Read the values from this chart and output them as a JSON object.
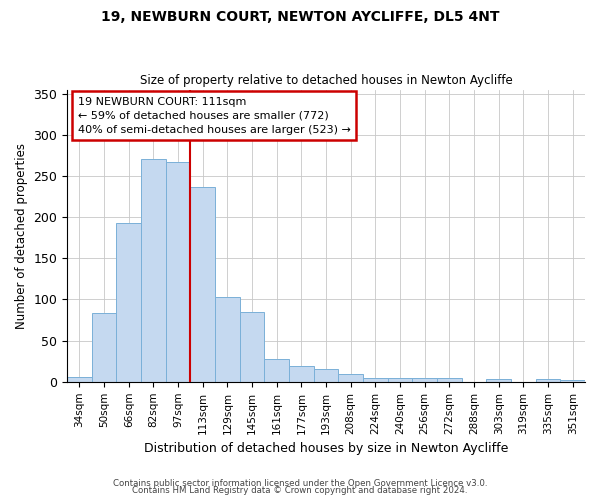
{
  "title": "19, NEWBURN COURT, NEWTON AYCLIFFE, DL5 4NT",
  "subtitle": "Size of property relative to detached houses in Newton Aycliffe",
  "xlabel": "Distribution of detached houses by size in Newton Aycliffe",
  "ylabel": "Number of detached properties",
  "bar_labels": [
    "34sqm",
    "50sqm",
    "66sqm",
    "82sqm",
    "97sqm",
    "113sqm",
    "129sqm",
    "145sqm",
    "161sqm",
    "177sqm",
    "193sqm",
    "208sqm",
    "224sqm",
    "240sqm",
    "256sqm",
    "272sqm",
    "288sqm",
    "303sqm",
    "319sqm",
    "335sqm",
    "351sqm"
  ],
  "bar_values": [
    6,
    84,
    193,
    271,
    267,
    237,
    103,
    85,
    28,
    19,
    15,
    9,
    5,
    5,
    5,
    5,
    0,
    3,
    0,
    4,
    2
  ],
  "bar_color": "#c5d9f0",
  "bar_edge_color": "#7ab0d8",
  "ylim": [
    0,
    355
  ],
  "yticks": [
    0,
    50,
    100,
    150,
    200,
    250,
    300,
    350
  ],
  "vline_idx": 4.5,
  "vline_color": "#cc0000",
  "annotation_title": "19 NEWBURN COURT: 111sqm",
  "annotation_line1": "← 59% of detached houses are smaller (772)",
  "annotation_line2": "40% of semi-detached houses are larger (523) →",
  "annotation_box_color": "#cc0000",
  "footer1": "Contains HM Land Registry data © Crown copyright and database right 2024.",
  "footer2": "Contains public sector information licensed under the Open Government Licence v3.0.",
  "background_color": "#ffffff",
  "grid_color": "#c8c8c8"
}
